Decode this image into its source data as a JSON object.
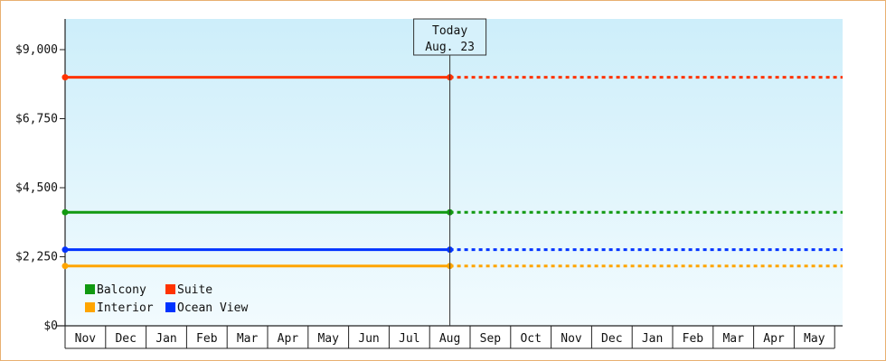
{
  "chart_data": {
    "type": "line",
    "title": "",
    "xlabel": "",
    "ylabel": "",
    "ylim": [
      0,
      10000
    ],
    "y_ticks": [
      0,
      2250,
      4500,
      6750,
      9000
    ],
    "y_tick_labels": [
      "$0",
      "$2,250",
      "$4,500",
      "$6,750",
      "$9,000"
    ],
    "months": [
      "Nov",
      "Dec",
      "Jan",
      "Feb",
      "Mar",
      "Apr",
      "May",
      "Jun",
      "Jul",
      "Aug",
      "Sep",
      "Oct",
      "Nov",
      "Dec",
      "Jan",
      "Feb",
      "Mar",
      "Apr",
      "May"
    ],
    "today": {
      "line1": "Today",
      "line2": "Aug. 23",
      "month_index": 9.5
    },
    "grid": false,
    "legend_placement": "bottom-left",
    "background_gradient": [
      "#cdeefa",
      "#f2fbfe"
    ],
    "series": [
      {
        "name": "Suite",
        "color": "#ff3300",
        "value": 8100
      },
      {
        "name": "Balcony",
        "color": "#119911",
        "value": 3700
      },
      {
        "name": "Ocean View",
        "color": "#0033ff",
        "value": 2480
      },
      {
        "name": "Interior",
        "color": "#ffa500",
        "value": 1950
      }
    ],
    "legend": [
      {
        "name": "Balcony",
        "color": "#119911"
      },
      {
        "name": "Suite",
        "color": "#ff3300"
      },
      {
        "name": "Interior",
        "color": "#ffa500"
      },
      {
        "name": "Ocean View",
        "color": "#0033ff"
      }
    ]
  }
}
